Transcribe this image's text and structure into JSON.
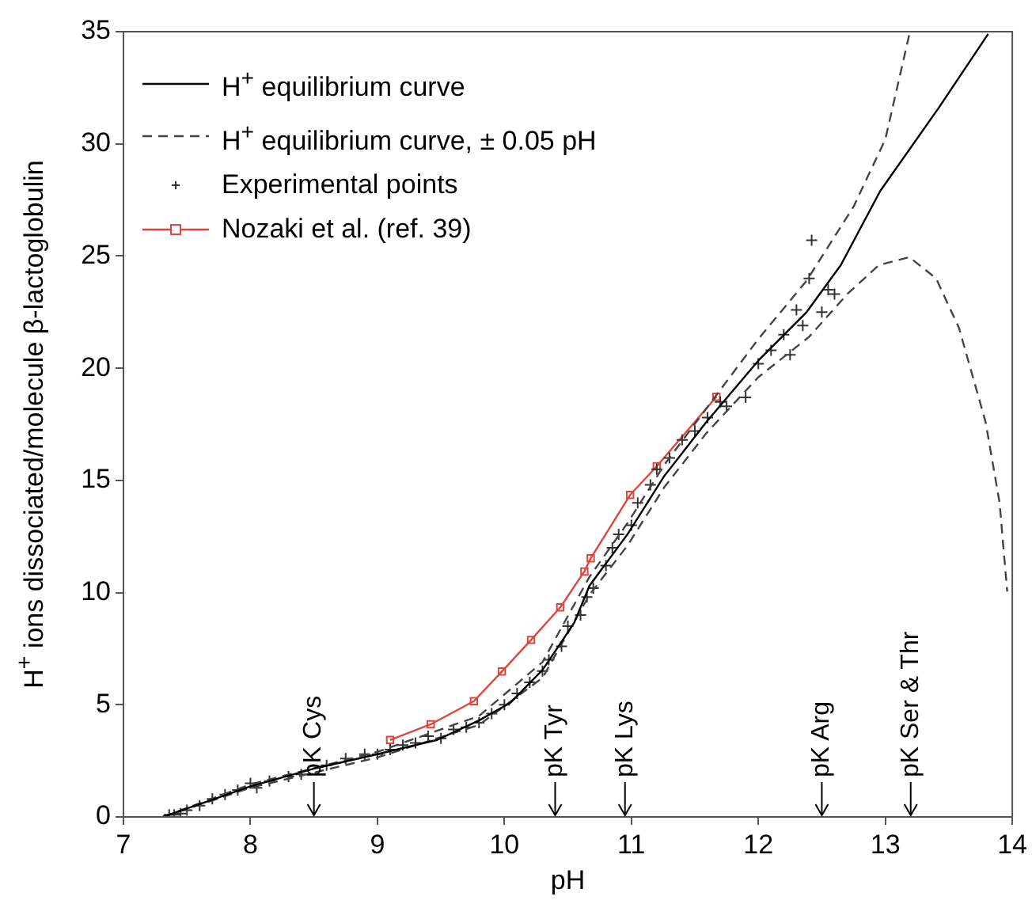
{
  "chart_data": {
    "type": "line",
    "xlabel": "pH",
    "ylabel": "H$^{+}$ ions dissociated/molecule β-lactoglobulin",
    "xlim": [
      7,
      14
    ],
    "ylim": [
      0,
      35
    ],
    "xticks": [
      7,
      8,
      9,
      10,
      11,
      12,
      13,
      14
    ],
    "yticks": [
      0,
      5,
      10,
      15,
      20,
      25,
      30,
      35
    ],
    "legend": "top left",
    "grid": false,
    "series": [
      {
        "name": "H$^{+}$ equilibrium curve",
        "color": "#000000",
        "line_style": "solid",
        "marker": "none",
        "x": [
          7.31,
          8.0,
          8.52,
          8.98,
          9.47,
          9.8,
          10.05,
          10.3,
          10.39,
          10.55,
          10.67,
          10.97,
          11.26,
          11.59,
          12.01,
          12.38,
          12.65,
          12.96,
          13.42,
          13.81
        ],
        "values": [
          0,
          1.36,
          2.18,
          2.77,
          3.43,
          4.3,
          5.1,
          6.55,
          7.3,
          8.66,
          10.3,
          12.6,
          15.2,
          17.6,
          20.4,
          22.5,
          24.6,
          27.9,
          31.6,
          34.9
        ]
      },
      {
        "name": "H$^{+}$ equilibrium curve, ± 0.05 pH",
        "color": "#444444",
        "line_style": "dashed",
        "marker": "none",
        "x": [
          7.31,
          8.0,
          9.0,
          9.8,
          10.3,
          10.67,
          10.97,
          11.26,
          11.59,
          12.0,
          12.38,
          12.75,
          13.0,
          13.19
        ],
        "values": [
          0,
          1.45,
          2.9,
          4.5,
          6.9,
          10.7,
          13.1,
          15.7,
          18.2,
          21.3,
          23.9,
          27.2,
          30.2,
          34.9
        ]
      },
      {
        "color": "#444444",
        "line_style": "dashed",
        "marker": "none",
        "x": [
          7.31,
          8.0,
          9.0,
          9.8,
          10.3,
          10.67,
          10.97,
          11.26,
          11.59,
          12.0,
          12.4,
          12.7,
          12.95,
          13.19,
          13.4,
          13.58,
          13.79,
          13.9,
          13.96
        ],
        "values": [
          0,
          1.3,
          2.65,
          4.1,
          6.2,
          9.9,
          12.1,
          14.7,
          17.1,
          19.6,
          21.4,
          23.3,
          24.6,
          24.95,
          24.0,
          21.8,
          17.6,
          14.0,
          10.05
        ]
      },
      {
        "type": "scatter",
        "name": "Experimental points",
        "color": "#333333",
        "marker": "cross",
        "x": [
          7.36,
          7.4,
          7.45,
          7.5,
          7.6,
          7.7,
          7.8,
          7.9,
          8.0,
          8.05,
          8.15,
          8.3,
          8.4,
          8.6,
          8.75,
          8.9,
          9.0,
          9.1,
          9.2,
          9.3,
          9.4,
          9.5,
          9.6,
          9.7,
          9.8,
          9.9,
          10.0,
          10.1,
          10.2,
          10.3,
          10.35,
          10.45,
          10.5,
          10.6,
          10.65,
          10.7,
          10.8,
          10.85,
          10.9,
          11.0,
          11.05,
          11.15,
          11.2,
          11.3,
          11.4,
          11.5,
          11.6,
          11.7,
          11.75,
          11.9,
          12.0,
          12.1,
          12.2,
          12.25,
          12.3,
          12.35,
          12.4,
          12.42,
          12.5,
          12.55,
          12.6
        ],
        "values": [
          0.1,
          0.1,
          0.15,
          0.3,
          0.5,
          0.8,
          1.0,
          1.2,
          1.5,
          1.3,
          1.6,
          1.8,
          1.9,
          2.3,
          2.6,
          2.8,
          2.8,
          3.0,
          3.2,
          3.3,
          3.6,
          3.5,
          3.9,
          4.0,
          4.2,
          4.6,
          5.0,
          5.5,
          6.0,
          6.5,
          7.0,
          7.6,
          8.5,
          9.0,
          9.8,
          10.2,
          11.2,
          12.0,
          12.6,
          13.0,
          14.0,
          14.8,
          15.5,
          16.0,
          16.8,
          17.2,
          17.8,
          18.5,
          18.3,
          18.7,
          20.2,
          20.8,
          21.5,
          20.6,
          22.6,
          21.9,
          24.0,
          25.7,
          22.5,
          23.5,
          23.3
        ]
      },
      {
        "name": "Nozaki et al. (ref. 39)",
        "color": "#e0453c",
        "line_style": "solid",
        "marker": "square",
        "x": [
          9.1,
          9.42,
          9.76,
          9.98,
          10.21,
          10.44,
          10.63,
          10.68,
          10.99,
          11.2,
          11.67
        ],
        "values": [
          3.43,
          4.13,
          5.16,
          6.48,
          7.89,
          9.34,
          10.94,
          11.53,
          14.35,
          15.63,
          18.73
        ]
      }
    ],
    "ref_lines": [
      {
        "axis": "x",
        "value": 8.5,
        "label": "pK Cys"
      },
      {
        "axis": "x",
        "value": 10.4,
        "label": "pK Tyr"
      },
      {
        "axis": "x",
        "value": 10.95,
        "label": "pK Lys"
      },
      {
        "axis": "x",
        "value": 12.5,
        "label": "pK Arg"
      },
      {
        "axis": "x",
        "value": 13.2,
        "label": "pK Ser & Thr"
      }
    ]
  }
}
